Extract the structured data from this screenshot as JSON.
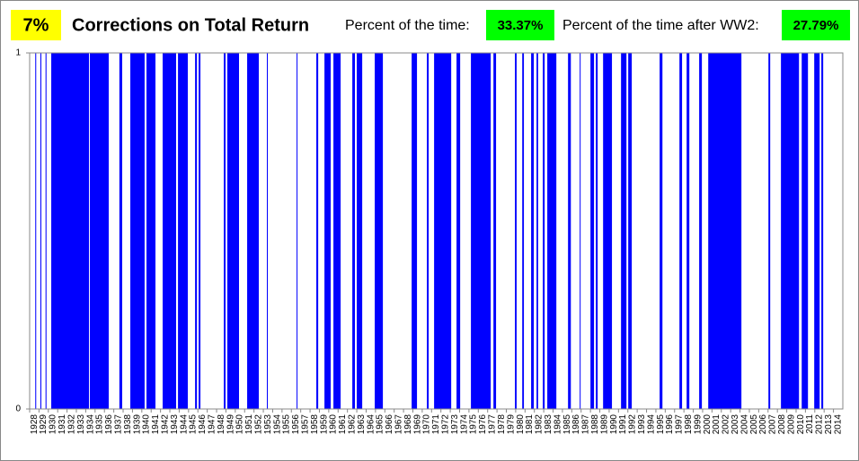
{
  "chart_data": {
    "type": "interval",
    "badge": "7%",
    "title": "Corrections on Total Return",
    "stats": [
      {
        "label": "Percent of the time:",
        "value": "33.37%"
      },
      {
        "label": "Percent of the time after WW2:",
        "value": "27.79%"
      }
    ],
    "color": "#0000ff",
    "x_start": [
      1928.6,
      1929.15,
      1929.7,
      1930.31,
      1934.44,
      1937.6,
      1938.77,
      1940.5,
      1942.23,
      1943.87,
      1945.7,
      1946.08,
      1948.77,
      1949.15,
      1951.27,
      1953.38,
      1956.56,
      1958.67,
      1959.54,
      1960.5,
      1962.52,
      1963.0,
      1964.92,
      1968.87,
      1970.5,
      1971.27,
      1973.67,
      1975.21,
      1977.62,
      1979.92,
      1980.7,
      1981.65,
      1982.23,
      1982.9,
      1983.38,
      1985.6,
      1986.85,
      1988.0,
      1988.58,
      1989.35,
      1991.27,
      1992.04,
      1995.4,
      1997.52,
      1998.29,
      1999.63,
      2000.6,
      2007.04,
      2008.38,
      2010.6,
      2011.94,
      2012.7
    ],
    "x_end": [
      1928.7,
      1929.25,
      1929.8,
      1934.35,
      1936.46,
      1937.9,
      1940.3,
      1941.46,
      1943.67,
      1944.92,
      1945.9,
      1946.27,
      1948.96,
      1950.4,
      1952.52,
      1953.48,
      1956.65,
      1958.87,
      1960.21,
      1961.27,
      1962.8,
      1963.58,
      1965.79,
      1969.44,
      1970.69,
      1973.1,
      1974.06,
      1977.33,
      1977.9,
      1980.1,
      1980.88,
      1981.94,
      1982.4,
      1983.1,
      1984.35,
      1985.9,
      1986.94,
      1988.38,
      1988.77,
      1990.3,
      1991.85,
      1992.42,
      1995.7,
      1997.8,
      1998.58,
      1999.92,
      2004.15,
      2007.23,
      2010.31,
      2011.27,
      2012.52,
      2012.9
    ],
    "values": [
      1,
      1,
      1,
      1,
      1,
      1,
      1,
      1,
      1,
      1,
      1,
      1,
      1,
      1,
      1,
      1,
      1,
      1,
      1,
      1,
      1,
      1,
      1,
      1,
      1,
      1,
      1,
      1,
      1,
      1,
      1,
      1,
      1,
      1,
      1,
      1,
      1,
      1,
      1,
      1,
      1,
      1,
      1,
      1,
      1,
      1,
      1,
      1,
      1,
      1,
      1,
      1
    ],
    "xlim": [
      1928,
      2015
    ],
    "xticks": [
      1928,
      1929,
      1930,
      1931,
      1932,
      1933,
      1934,
      1935,
      1936,
      1937,
      1938,
      1939,
      1940,
      1941,
      1942,
      1943,
      1944,
      1945,
      1946,
      1947,
      1948,
      1949,
      1950,
      1951,
      1952,
      1953,
      1954,
      1955,
      1956,
      1957,
      1958,
      1959,
      1960,
      1961,
      1962,
      1963,
      1964,
      1965,
      1966,
      1967,
      1968,
      1969,
      1970,
      1971,
      1972,
      1973,
      1974,
      1975,
      1976,
      1977,
      1978,
      1979,
      1980,
      1981,
      1982,
      1983,
      1984,
      1985,
      1986,
      1987,
      1988,
      1989,
      1990,
      1991,
      1992,
      1993,
      1994,
      1995,
      1996,
      1997,
      1998,
      1999,
      2000,
      2001,
      2002,
      2003,
      2004,
      2005,
      2006,
      2007,
      2008,
      2009,
      2010,
      2011,
      2012,
      2013,
      2014
    ],
    "ylim": [
      0,
      1
    ],
    "yticks": [
      0,
      1
    ]
  }
}
